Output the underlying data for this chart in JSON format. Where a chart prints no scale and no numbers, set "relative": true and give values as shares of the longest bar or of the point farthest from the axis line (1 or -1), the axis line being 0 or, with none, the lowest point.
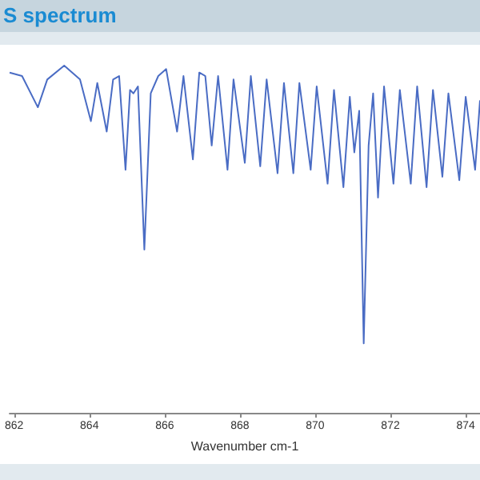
{
  "chart_data": {
    "type": "line",
    "title": "S spectrum",
    "xlabel": "Wavenumber cm-1",
    "relative": true,
    "xlim": [
      861.88,
      874.38
    ],
    "xticks": [
      862,
      864,
      866,
      868,
      870,
      872,
      874
    ],
    "marker": "none",
    "line_style": "solid",
    "series": [
      {
        "color": "#4a6cc4",
        "x": [
          861.88,
          862.21,
          862.63,
          862.88,
          863.33,
          863.75,
          864.04,
          864.21,
          864.46,
          864.63,
          864.79,
          864.96,
          865.08,
          865.17,
          865.29,
          865.46,
          865.63,
          865.83,
          866.04,
          866.33,
          866.5,
          866.75,
          866.92,
          867.08,
          867.25,
          867.42,
          867.67,
          867.83,
          868.13,
          868.29,
          868.54,
          868.71,
          869.0,
          869.17,
          869.42,
          869.58,
          869.88,
          870.04,
          870.33,
          870.5,
          870.75,
          870.92,
          871.04,
          871.17,
          871.29,
          871.42,
          871.54,
          871.67,
          871.83,
          872.08,
          872.25,
          872.54,
          872.71,
          872.96,
          873.13,
          873.38,
          873.54,
          873.83,
          874.0,
          874.25,
          874.38
        ],
        "values": [
          0.98,
          0.97,
          0.88,
          0.96,
          1.0,
          0.96,
          0.84,
          0.95,
          0.81,
          0.96,
          0.97,
          0.7,
          0.93,
          0.92,
          0.94,
          0.47,
          0.92,
          0.97,
          0.99,
          0.81,
          0.97,
          0.73,
          0.98,
          0.97,
          0.77,
          0.97,
          0.7,
          0.96,
          0.72,
          0.97,
          0.71,
          0.96,
          0.69,
          0.95,
          0.69,
          0.95,
          0.7,
          0.94,
          0.66,
          0.93,
          0.65,
          0.91,
          0.75,
          0.87,
          0.2,
          0.77,
          0.92,
          0.62,
          0.94,
          0.66,
          0.93,
          0.66,
          0.94,
          0.65,
          0.93,
          0.68,
          0.92,
          0.67,
          0.91,
          0.7,
          0.9
        ]
      }
    ]
  }
}
